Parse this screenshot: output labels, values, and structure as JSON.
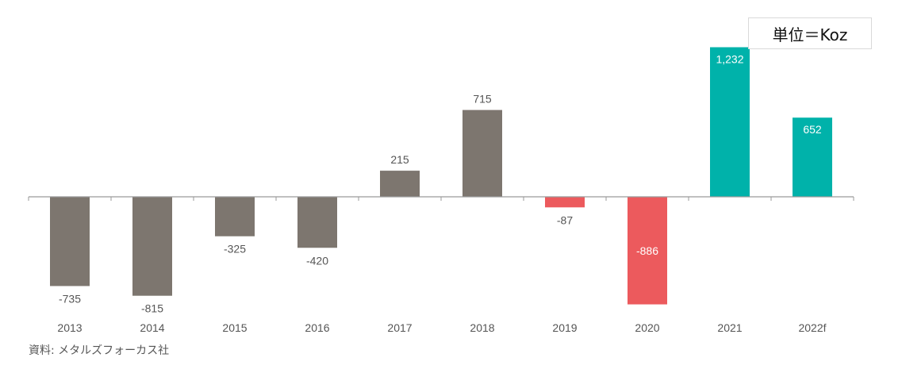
{
  "unit_label": "単位＝Koz",
  "source": "資料: メタルズフォーカス社",
  "chart_data": {
    "type": "bar",
    "categories": [
      "2013",
      "2014",
      "2015",
      "2016",
      "2017",
      "2018",
      "2019",
      "2020",
      "2021",
      "2022f"
    ],
    "values": [
      -735,
      -815,
      -325,
      -420,
      215,
      715,
      -87,
      -886,
      1232,
      652
    ],
    "value_labels": [
      "-735",
      "-815",
      "-325",
      "-420",
      "215",
      "715",
      "-87",
      "-886",
      "1,232",
      "652"
    ],
    "bar_colors": [
      "#7d766f",
      "#7d766f",
      "#7d766f",
      "#7d766f",
      "#7d766f",
      "#7d766f",
      "#ec5a5d",
      "#ec5a5d",
      "#00b2aa",
      "#00b2aa"
    ],
    "label_inside": [
      false,
      false,
      false,
      false,
      false,
      false,
      false,
      true,
      true,
      true
    ],
    "ylim": [
      -950,
      1300
    ],
    "grid": false,
    "title": "",
    "xlabel": "",
    "ylabel": ""
  },
  "colors": {
    "past": "#7d766f",
    "deficit_recent": "#ec5a5d",
    "surplus_recent": "#00b2aa",
    "axis": "#9a9a9a",
    "label": "#555555"
  }
}
